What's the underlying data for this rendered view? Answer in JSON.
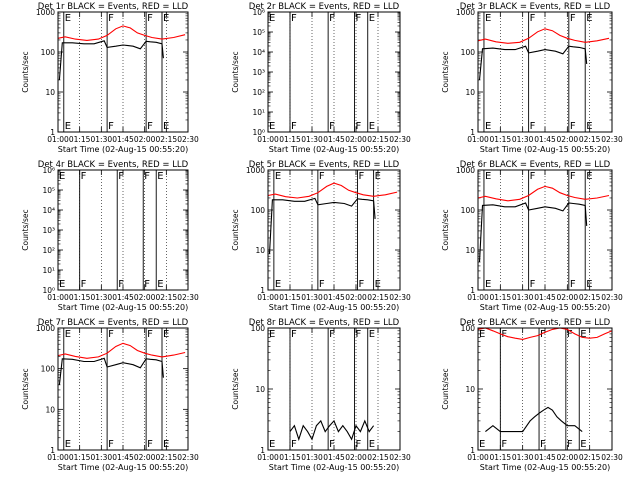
{
  "colors": {
    "events": "#000000",
    "lld": "#ff0000",
    "background": "#ffffff"
  },
  "chart_data": [
    {
      "type": "line",
      "title": "Det 1r BLACK = Events, RED = LLD",
      "xlabel": "Start Time (02-Aug-15 00:55:20)",
      "ylabel": "Counts/sec",
      "x_unit": "minutes after 01:00",
      "xlim": [
        0,
        90
      ],
      "xticks": [
        "01:00",
        "01:15",
        "01:30",
        "01:45",
        "02:00",
        "02:15",
        "02:30"
      ],
      "y_scale": "log",
      "ylim": [
        1,
        1000
      ],
      "yticks": [
        "1",
        "10",
        "100",
        "1000"
      ],
      "flags": [
        {
          "label": "E",
          "x": 4
        },
        {
          "label": "F",
          "x": 34
        },
        {
          "label": "F",
          "x": 61
        },
        {
          "label": "E",
          "x": 72
        }
      ],
      "series": [
        {
          "name": "Events",
          "color": "#000000",
          "x": [
            1,
            3,
            10,
            18,
            25,
            32,
            34,
            40,
            45,
            52,
            57,
            61,
            64,
            68,
            72,
            73
          ],
          "y": [
            20,
            170,
            170,
            160,
            160,
            190,
            130,
            140,
            150,
            140,
            120,
            185,
            180,
            175,
            160,
            70
          ]
        },
        {
          "name": "LLD",
          "color": "#ff0000",
          "x": [
            0,
            5,
            12,
            20,
            28,
            34,
            40,
            45,
            50,
            55,
            60,
            65,
            72,
            80,
            88
          ],
          "y": [
            220,
            240,
            210,
            195,
            210,
            260,
            380,
            450,
            400,
            300,
            260,
            230,
            210,
            230,
            270
          ]
        }
      ]
    },
    {
      "type": "line",
      "title": "Det 2r BLACK = Events, RED = LLD",
      "xlabel": "Start Time (02-Aug-15 00:55:20)",
      "ylabel": "Counts/sec",
      "x_unit": "minutes after 01:00",
      "xlim": [
        0,
        90
      ],
      "xticks": [
        "01:00",
        "01:15",
        "01:30",
        "01:45",
        "02:00",
        "02:15",
        "02:30"
      ],
      "y_scale": "log",
      "ylim": [
        1,
        1000000
      ],
      "yticks": [
        "10⁰",
        "10¹",
        "10²",
        "10³",
        "10⁴",
        "10⁵",
        "10⁶"
      ],
      "flags": [
        {
          "label": "E",
          "x": 0
        },
        {
          "label": "F",
          "x": 15
        },
        {
          "label": "F",
          "x": 41
        },
        {
          "label": "F",
          "x": 59
        },
        {
          "label": "E",
          "x": 68
        }
      ],
      "series": []
    },
    {
      "type": "line",
      "title": "Det 3r BLACK = Events, RED = LLD",
      "xlabel": "Start Time (02-Aug-15 00:55:20)",
      "ylabel": "Counts/sec",
      "x_unit": "minutes after 01:00",
      "xlim": [
        0,
        90
      ],
      "xticks": [
        "01:00",
        "01:15",
        "01:30",
        "01:45",
        "02:00",
        "02:15",
        "02:30"
      ],
      "y_scale": "log",
      "ylim": [
        1,
        1000
      ],
      "yticks": [
        "1",
        "10",
        "100",
        "1000"
      ],
      "flags": [
        {
          "label": "E",
          "x": 4
        },
        {
          "label": "F",
          "x": 34
        },
        {
          "label": "F",
          "x": 61
        },
        {
          "label": "E",
          "x": 72
        }
      ],
      "series": [
        {
          "name": "Events",
          "color": "#000000",
          "x": [
            1,
            3,
            10,
            18,
            25,
            32,
            34,
            40,
            45,
            52,
            57,
            61,
            64,
            68,
            72,
            73
          ],
          "y": [
            20,
            120,
            125,
            115,
            115,
            140,
            95,
            105,
            115,
            105,
            90,
            140,
            135,
            130,
            120,
            50
          ]
        },
        {
          "name": "LLD",
          "color": "#ff0000",
          "x": [
            0,
            5,
            12,
            20,
            28,
            34,
            40,
            45,
            50,
            55,
            60,
            65,
            72,
            80,
            88
          ],
          "y": [
            190,
            210,
            180,
            165,
            175,
            220,
            320,
            380,
            340,
            260,
            220,
            195,
            175,
            190,
            220
          ]
        }
      ]
    },
    {
      "type": "line",
      "title": "Det 4r BLACK = Events, RED = LLD",
      "xlabel": "Start Time (02-Aug-15 00:55:20)",
      "ylabel": "Counts/sec",
      "x_unit": "minutes after 01:00",
      "xlim": [
        0,
        90
      ],
      "xticks": [
        "01:00",
        "01:15",
        "01:30",
        "01:45",
        "02:00",
        "02:15",
        "02:30"
      ],
      "y_scale": "log",
      "ylim": [
        1,
        1000000
      ],
      "yticks": [
        "10⁰",
        "10¹",
        "10²",
        "10³",
        "10⁴",
        "10⁵",
        "10⁶"
      ],
      "flags": [
        {
          "label": "E",
          "x": 0
        },
        {
          "label": "F",
          "x": 15
        },
        {
          "label": "F",
          "x": 41
        },
        {
          "label": "F",
          "x": 59
        },
        {
          "label": "E",
          "x": 68
        }
      ],
      "series": []
    },
    {
      "type": "line",
      "title": "Det 5r BLACK = Events, RED = LLD",
      "xlabel": "Start Time (02-Aug-15 00:55:20)",
      "ylabel": "Counts/sec",
      "x_unit": "minutes after 01:00",
      "xlim": [
        0,
        90
      ],
      "xticks": [
        "01:00",
        "01:15",
        "01:30",
        "01:45",
        "02:00",
        "02:15",
        "02:30"
      ],
      "y_scale": "log",
      "ylim": [
        1,
        1000
      ],
      "yticks": [
        "1",
        "10",
        "100",
        "1000"
      ],
      "flags": [
        {
          "label": "E",
          "x": 4
        },
        {
          "label": "F",
          "x": 34
        },
        {
          "label": "F",
          "x": 61
        },
        {
          "label": "E",
          "x": 72
        }
      ],
      "series": [
        {
          "name": "Events",
          "color": "#000000",
          "x": [
            1,
            3,
            10,
            18,
            25,
            32,
            34,
            40,
            45,
            52,
            57,
            61,
            64,
            68,
            72,
            73
          ],
          "y": [
            8,
            180,
            180,
            165,
            165,
            195,
            135,
            145,
            155,
            145,
            125,
            190,
            185,
            180,
            170,
            60
          ]
        },
        {
          "name": "LLD",
          "color": "#ff0000",
          "x": [
            0,
            5,
            12,
            20,
            28,
            34,
            40,
            45,
            50,
            55,
            60,
            65,
            72,
            80,
            88
          ],
          "y": [
            230,
            250,
            215,
            200,
            220,
            270,
            390,
            470,
            410,
            310,
            270,
            240,
            220,
            240,
            280
          ]
        }
      ]
    },
    {
      "type": "line",
      "title": "Det 6r BLACK = Events, RED = LLD",
      "xlabel": "Start Time (02-Aug-15 00:55:20)",
      "ylabel": "Counts/sec",
      "x_unit": "minutes after 01:00",
      "xlim": [
        0,
        90
      ],
      "xticks": [
        "01:00",
        "01:15",
        "01:30",
        "01:45",
        "02:00",
        "02:15",
        "02:30"
      ],
      "y_scale": "log",
      "ylim": [
        1,
        1000
      ],
      "yticks": [
        "1",
        "10",
        "100",
        "1000"
      ],
      "flags": [
        {
          "label": "E",
          "x": 4
        },
        {
          "label": "F",
          "x": 34
        },
        {
          "label": "F",
          "x": 61
        },
        {
          "label": "E",
          "x": 72
        }
      ],
      "series": [
        {
          "name": "Events",
          "color": "#000000",
          "x": [
            1,
            3,
            10,
            18,
            25,
            32,
            34,
            40,
            45,
            52,
            57,
            61,
            64,
            68,
            72,
            73
          ],
          "y": [
            5,
            130,
            135,
            120,
            120,
            150,
            100,
            110,
            120,
            110,
            95,
            150,
            145,
            140,
            130,
            40
          ]
        },
        {
          "name": "LLD",
          "color": "#ff0000",
          "x": [
            0,
            5,
            12,
            20,
            28,
            34,
            40,
            45,
            50,
            55,
            60,
            65,
            72,
            80,
            88
          ],
          "y": [
            200,
            220,
            190,
            170,
            185,
            230,
            330,
            390,
            350,
            270,
            230,
            205,
            185,
            200,
            230
          ]
        }
      ]
    },
    {
      "type": "line",
      "title": "Det 7r BLACK = Events, RED = LLD",
      "xlabel": "Start Time (02-Aug-15 00:55:20)",
      "ylabel": "Counts/sec",
      "x_unit": "minutes after 01:00",
      "xlim": [
        0,
        90
      ],
      "xticks": [
        "01:00",
        "01:15",
        "01:30",
        "01:45",
        "02:00",
        "02:15",
        "02:30"
      ],
      "y_scale": "log",
      "ylim": [
        1,
        1000
      ],
      "yticks": [
        "1",
        "10",
        "100",
        "1000"
      ],
      "flags": [
        {
          "label": "E",
          "x": 4
        },
        {
          "label": "F",
          "x": 34
        },
        {
          "label": "F",
          "x": 61
        },
        {
          "label": "E",
          "x": 72
        }
      ],
      "series": [
        {
          "name": "Events",
          "color": "#000000",
          "x": [
            1,
            3,
            10,
            18,
            25,
            32,
            34,
            40,
            45,
            52,
            57,
            61,
            64,
            68,
            72,
            73
          ],
          "y": [
            40,
            175,
            170,
            150,
            150,
            180,
            110,
            125,
            140,
            125,
            105,
            175,
            170,
            165,
            150,
            60
          ]
        },
        {
          "name": "LLD",
          "color": "#ff0000",
          "x": [
            0,
            5,
            12,
            20,
            28,
            34,
            40,
            45,
            50,
            55,
            60,
            65,
            72,
            80,
            88
          ],
          "y": [
            210,
            230,
            200,
            180,
            195,
            240,
            350,
            420,
            370,
            280,
            240,
            215,
            195,
            215,
            250
          ]
        }
      ]
    },
    {
      "type": "line",
      "title": "Det 8r BLACK = Events, RED = LLD",
      "xlabel": "Start Time (02-Aug-15 00:55:20)",
      "ylabel": "Counts/sec",
      "x_unit": "minutes after 01:00",
      "xlim": [
        0,
        90
      ],
      "xticks": [
        "01:00",
        "01:15",
        "01:30",
        "01:45",
        "02:00",
        "02:15",
        "02:30"
      ],
      "y_scale": "log",
      "ylim": [
        1,
        100
      ],
      "yticks": [
        "1",
        "10",
        "100"
      ],
      "flags": [
        {
          "label": "E",
          "x": 0
        },
        {
          "label": "F",
          "x": 15
        },
        {
          "label": "F",
          "x": 41
        },
        {
          "label": "F",
          "x": 59
        },
        {
          "label": "E",
          "x": 68
        }
      ],
      "series": [
        {
          "name": "Events",
          "color": "#000000",
          "x": [
            15,
            18,
            21,
            24,
            27,
            30,
            33,
            36,
            39,
            42,
            45,
            48,
            51,
            54,
            57,
            60,
            63,
            66,
            69,
            72
          ],
          "y": [
            2,
            2.5,
            1.5,
            2.5,
            2,
            1.5,
            2.5,
            3,
            2,
            2.5,
            3,
            2,
            2.5,
            2,
            1.5,
            2.5,
            2,
            3,
            2,
            2.5
          ]
        }
      ]
    },
    {
      "type": "line",
      "title": "Det 9r BLACK = Events, RED = LLD",
      "xlabel": "Start Time (02-Aug-15 00:55:20)",
      "ylabel": "Counts/sec",
      "x_unit": "minutes after 01:00",
      "xlim": [
        0,
        90
      ],
      "xticks": [
        "01:00",
        "01:15",
        "01:30",
        "01:45",
        "02:00",
        "02:15",
        "02:30"
      ],
      "y_scale": "log",
      "ylim": [
        1,
        100
      ],
      "yticks": [
        "1",
        "10",
        "100"
      ],
      "flags": [
        {
          "label": "E",
          "x": 0
        },
        {
          "label": "F",
          "x": 15
        },
        {
          "label": "F",
          "x": 41
        },
        {
          "label": "F",
          "x": 59
        },
        {
          "label": "E",
          "x": 68
        }
      ],
      "series": [
        {
          "name": "Events",
          "color": "#000000",
          "x": [
            5,
            10,
            15,
            20,
            25,
            30,
            35,
            38,
            41,
            44,
            47,
            50,
            53,
            56,
            60,
            65,
            70
          ],
          "y": [
            2,
            2.5,
            2,
            2,
            2,
            2,
            3,
            3.5,
            4,
            4.5,
            5,
            4.5,
            3.5,
            3,
            2.5,
            2.5,
            2
          ]
        },
        {
          "name": "LLD",
          "color": "#ff0000",
          "x": [
            0,
            5,
            10,
            15,
            20,
            25,
            30,
            35,
            40,
            45,
            50,
            55,
            60,
            65,
            70,
            75,
            80,
            85,
            90
          ],
          "y": [
            95,
            100,
            90,
            80,
            72,
            68,
            65,
            70,
            75,
            85,
            95,
            100,
            95,
            80,
            70,
            68,
            70,
            80,
            90
          ]
        }
      ]
    }
  ]
}
